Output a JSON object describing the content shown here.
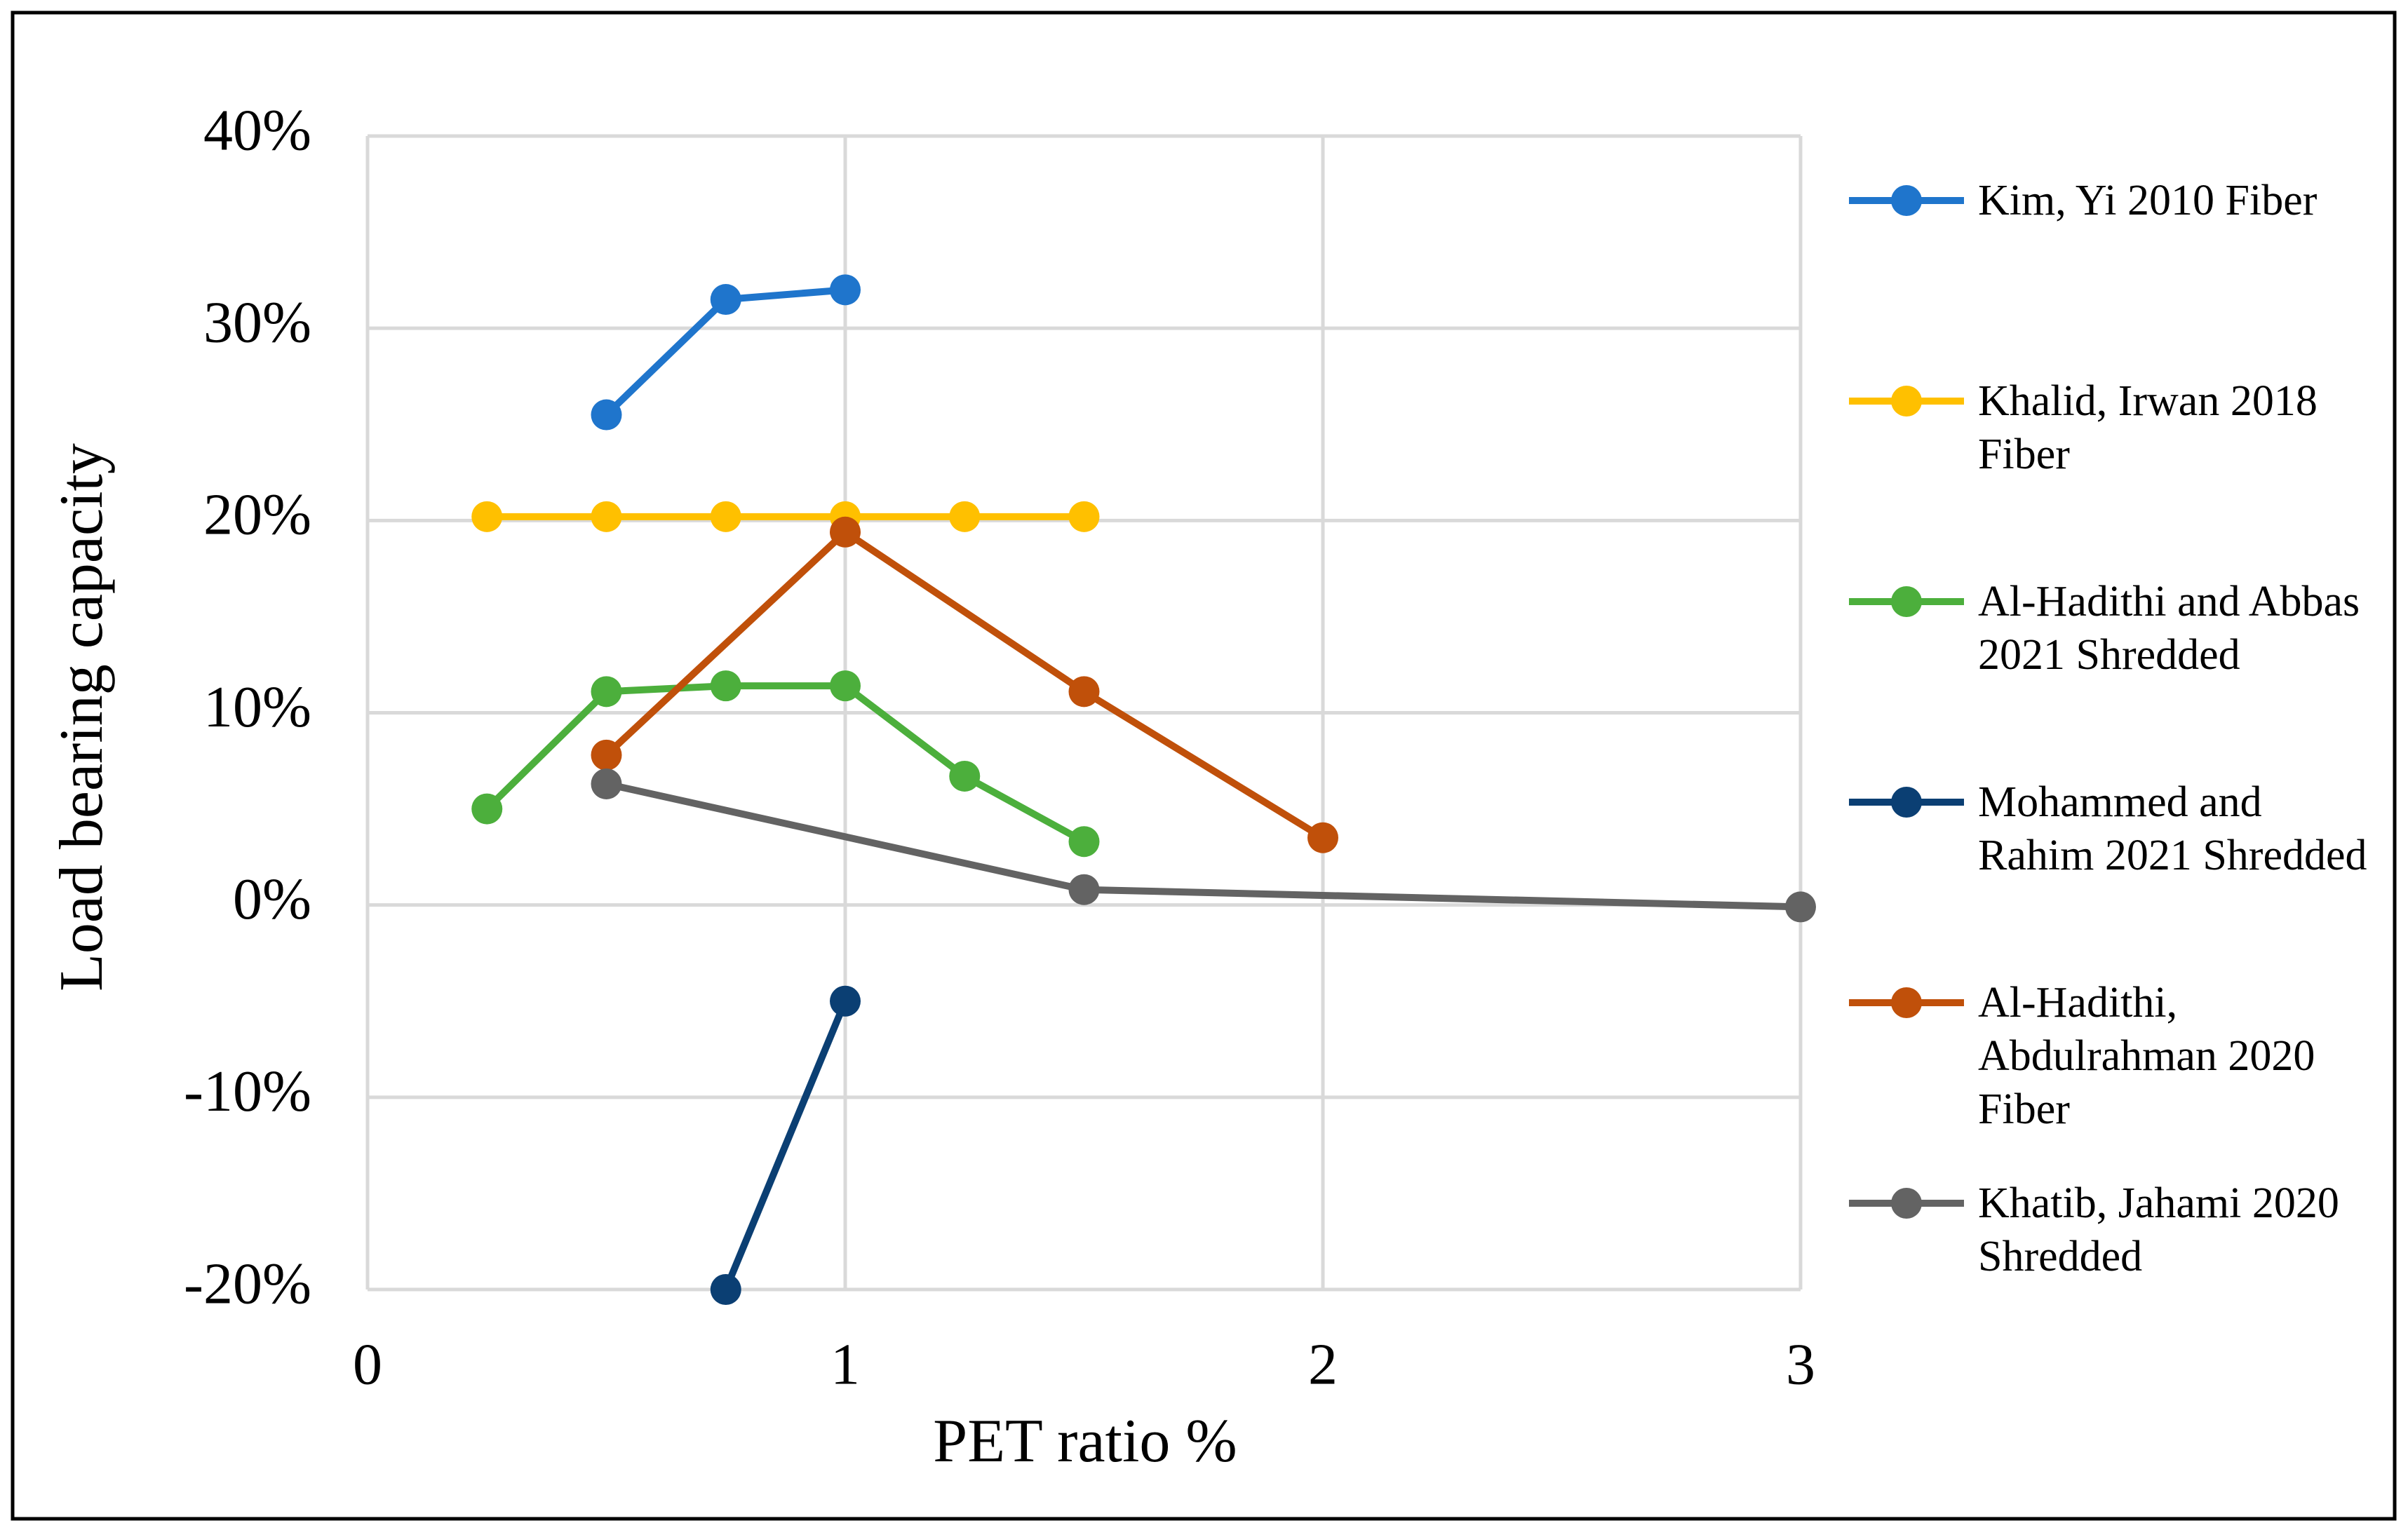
{
  "chart_data": {
    "type": "line",
    "x_label": "PET ratio %",
    "y_label": "Load bearing capacity",
    "xlim": [
      0,
      3
    ],
    "xticks": [
      0,
      1,
      2,
      3
    ],
    "ylim": [
      -20,
      40
    ],
    "yticks": [
      {
        "value": -20,
        "label": "-20%"
      },
      {
        "value": -10,
        "label": "-10%"
      },
      {
        "value": 0,
        "label": "0%"
      },
      {
        "value": 10,
        "label": "10%"
      },
      {
        "value": 20,
        "label": "20%"
      },
      {
        "value": 30,
        "label": "30%"
      },
      {
        "value": 40,
        "label": "40%"
      }
    ],
    "grid": true,
    "legend": "right",
    "series": [
      {
        "name": "Kim, Yi 2010 Fiber",
        "color": "#1f75cc",
        "x": [
          0.5,
          0.75,
          1
        ],
        "values": [
          25.5,
          31.5,
          32
        ]
      },
      {
        "name": "Khalid, Irwan 2018 Fiber",
        "color": "#ffc000",
        "x": [
          0.25,
          0.5,
          0.75,
          1,
          1.25,
          1.5
        ],
        "values": [
          20.2,
          20.2,
          20.2,
          20.2,
          20.2,
          20.2
        ]
      },
      {
        "name": "Al-Hadithi and Abbas 2021 Shredded",
        "color": "#4caf3c",
        "x": [
          0.25,
          0.5,
          0.75,
          1,
          1.25,
          1.5
        ],
        "values": [
          5,
          11.1,
          11.4,
          11.4,
          6.7,
          3.3
        ]
      },
      {
        "name": "Mohammed and Rahim 2021 Shredded",
        "color": "#0b3f73",
        "x": [
          0.75,
          1
        ],
        "values": [
          -20,
          -5
        ]
      },
      {
        "name": "Al-Hadithi, Abdulrahman 2020 Fiber",
        "color": "#c0500a",
        "x": [
          0.5,
          1,
          1.5,
          2
        ],
        "values": [
          7.8,
          19.4,
          11.1,
          3.5
        ]
      },
      {
        "name": "Khatib, Jahami 2020 Shredded",
        "color": "#636363",
        "x": [
          0.5,
          1.5,
          3
        ],
        "values": [
          6.3,
          0.8,
          -0.1
        ]
      }
    ]
  }
}
